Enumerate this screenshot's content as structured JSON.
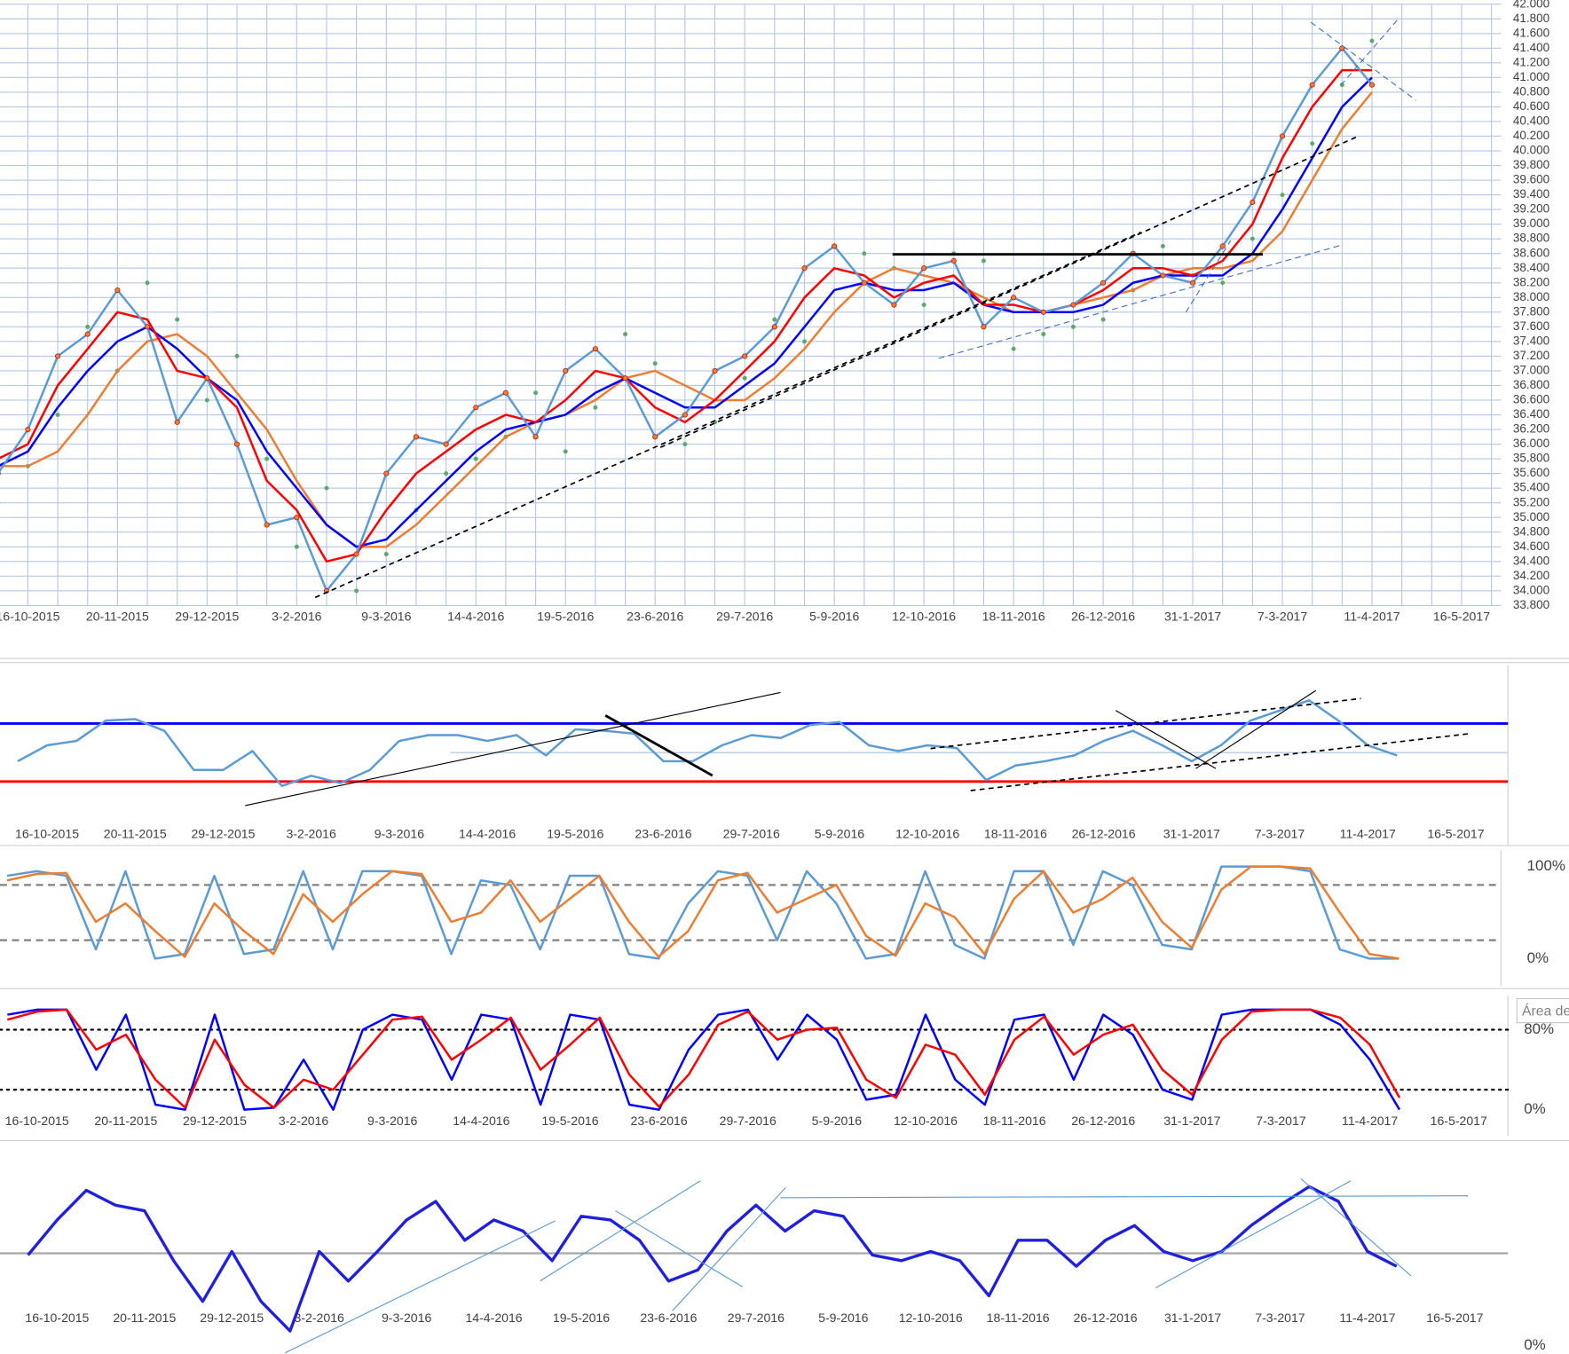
{
  "chart_data": [
    {
      "type": "line",
      "categories": [
        null,
        "16-10-2015",
        null,
        null,
        "20-11-2015",
        null,
        null,
        "29-12-2015",
        null,
        null,
        "3-2-2016",
        null,
        null,
        "9-3-2016",
        null,
        null,
        "14-4-2016",
        null,
        null,
        "19-5-2016",
        null,
        null,
        "23-6-2016",
        null,
        null,
        "29-7-2016",
        null,
        null,
        "5-9-2016",
        null,
        null,
        "12-10-2016",
        null,
        null,
        "18-11-2016",
        null,
        null,
        "26-12-2016",
        null,
        null,
        "31-1-2017",
        null,
        null,
        "7-3-2017",
        null,
        null,
        "11-4-2017",
        null,
        null,
        "16-5-2017",
        null
      ],
      "ylim": [
        33800,
        42000
      ],
      "yticks": [
        {
          "value": 33800,
          "label": "33.800"
        },
        {
          "value": 34000,
          "label": "34.000"
        },
        {
          "value": 34200,
          "label": "34.200"
        },
        {
          "value": 34400,
          "label": "34.400"
        },
        {
          "value": 34600,
          "label": "34.600"
        },
        {
          "value": 34800,
          "label": "34.800"
        },
        {
          "value": 35000,
          "label": "35.000"
        },
        {
          "value": 35200,
          "label": "35.200"
        },
        {
          "value": 35400,
          "label": "35.400"
        },
        {
          "value": 35600,
          "label": "35.600"
        },
        {
          "value": 35800,
          "label": "35.800"
        },
        {
          "value": 36000,
          "label": "36.000"
        },
        {
          "value": 36200,
          "label": "36.200"
        },
        {
          "value": 36400,
          "label": "36.400"
        },
        {
          "value": 36600,
          "label": "36.600"
        },
        {
          "value": 36800,
          "label": "36.800"
        },
        {
          "value": 37000,
          "label": "37.000"
        },
        {
          "value": 37200,
          "label": "37.200"
        },
        {
          "value": 37400,
          "label": "37.400"
        },
        {
          "value": 37600,
          "label": "37.600"
        },
        {
          "value": 37800,
          "label": "37.800"
        },
        {
          "value": 38000,
          "label": "38.000"
        },
        {
          "value": 38200,
          "label": "38.200"
        },
        {
          "value": 38400,
          "label": "38.400"
        },
        {
          "value": 38600,
          "label": "38.600"
        },
        {
          "value": 38800,
          "label": "38.800"
        },
        {
          "value": 39000,
          "label": "39.000"
        },
        {
          "value": 39200,
          "label": "39.200"
        },
        {
          "value": 39400,
          "label": "39.400"
        },
        {
          "value": 39600,
          "label": "39.600"
        },
        {
          "value": 39800,
          "label": "39.800"
        },
        {
          "value": 40000,
          "label": "40.000"
        },
        {
          "value": 40200,
          "label": "40.200"
        },
        {
          "value": 40400,
          "label": "40.400"
        },
        {
          "value": 40600,
          "label": "40.600"
        },
        {
          "value": 40800,
          "label": "40.800"
        },
        {
          "value": 41000,
          "label": "41.000"
        },
        {
          "value": 41200,
          "label": "41.200"
        },
        {
          "value": 41400,
          "label": "41.400"
        },
        {
          "value": 41600,
          "label": "41.600"
        },
        {
          "value": 41800,
          "label": "41.800"
        },
        {
          "value": 42000,
          "label": "42.000"
        }
      ],
      "grid": true,
      "series": [
        {
          "color": "#5aaa6e",
          "style": "dots",
          "values": [
            35200,
            35700,
            36400,
            37600,
            37000,
            38200,
            37700,
            36600,
            37200,
            35800,
            34600,
            35400,
            34000,
            34500,
            35100,
            35600,
            35800,
            36100,
            36700,
            35900,
            36500,
            37500,
            37100,
            36000,
            36300,
            36900,
            37700,
            37400,
            38700,
            38600,
            38400,
            37900,
            38600,
            38500,
            37300,
            37500,
            37600,
            37700,
            38100,
            38700,
            38300,
            38200,
            38800,
            39400,
            40100,
            40900,
            41500,
            null,
            null,
            null,
            null
          ]
        },
        {
          "color": "#ed7d31",
          "values": [
            35700,
            35700,
            35900,
            36400,
            37000,
            37400,
            37500,
            37200,
            36700,
            36200,
            35500,
            34900,
            34600,
            34600,
            34900,
            35300,
            35700,
            36100,
            36300,
            36400,
            36600,
            36900,
            37000,
            36800,
            36600,
            36600,
            36900,
            37300,
            37800,
            38200,
            38400,
            38300,
            38200,
            38000,
            37800,
            37800,
            37900,
            38000,
            38100,
            38300,
            38400,
            38400,
            38500,
            38900,
            39600,
            40300,
            40800,
            null,
            null,
            null,
            null
          ]
        },
        {
          "color": "#0000ff",
          "values": [
            35700,
            35900,
            36500,
            37000,
            37400,
            37600,
            37300,
            36900,
            36600,
            35900,
            35400,
            34900,
            34600,
            34700,
            35100,
            35500,
            35900,
            36200,
            36300,
            36400,
            36700,
            36900,
            36700,
            36500,
            36500,
            36800,
            37100,
            37600,
            38100,
            38200,
            38100,
            38100,
            38200,
            37900,
            37800,
            37800,
            37800,
            37900,
            38200,
            38300,
            38300,
            38300,
            38600,
            39200,
            39900,
            40600,
            41000,
            null,
            null,
            null,
            null
          ]
        },
        {
          "color": "#ff0000",
          "values": [
            35800,
            36000,
            36800,
            37300,
            37800,
            37700,
            37000,
            36900,
            36500,
            35500,
            35100,
            34400,
            34500,
            35100,
            35600,
            35900,
            36200,
            36400,
            36300,
            36600,
            37000,
            36900,
            36500,
            36300,
            36600,
            37000,
            37400,
            38000,
            38400,
            38300,
            38000,
            38200,
            38300,
            37900,
            37900,
            37800,
            37900,
            38100,
            38400,
            38400,
            38300,
            38500,
            39000,
            39900,
            40600,
            41100,
            41100,
            null,
            null,
            null,
            null
          ]
        },
        {
          "color": "#5b9bd5",
          "markers": "#ed7d31",
          "values": [
            35600,
            36200,
            37200,
            37500,
            38100,
            37600,
            36300,
            36900,
            36000,
            34900,
            35000,
            34000,
            34500,
            35600,
            36100,
            36000,
            36500,
            36700,
            36100,
            37000,
            37300,
            36900,
            36100,
            36400,
            37000,
            37200,
            37600,
            38400,
            38700,
            38200,
            37900,
            38400,
            38500,
            37600,
            38000,
            37800,
            37900,
            38200,
            38600,
            38300,
            38200,
            38700,
            39300,
            40200,
            40900,
            41400,
            40900,
            null,
            null,
            null,
            null
          ]
        }
      ]
    },
    {
      "type": "line",
      "categories": [
        null,
        "16-10-2015",
        null,
        null,
        "20-11-2015",
        null,
        null,
        "29-12-2015",
        null,
        null,
        "3-2-2016",
        null,
        null,
        "9-3-2016",
        null,
        null,
        "14-4-2016",
        null,
        null,
        "19-5-2016",
        null,
        null,
        "23-6-2016",
        null,
        null,
        "29-7-2016",
        null,
        null,
        "5-9-2016",
        null,
        null,
        "12-10-2016",
        null,
        null,
        "18-11-2016",
        null,
        null,
        "26-12-2016",
        null,
        null,
        "31-1-2017",
        null,
        null,
        "7-3-2017",
        null,
        null,
        "11-4-2017",
        null,
        null,
        "16-5-2017",
        null
      ],
      "ylim": [
        0,
        100
      ],
      "hlines": [
        {
          "value": 70,
          "color": "#0000ff",
          "dash": "solid"
        },
        {
          "value": 30,
          "color": "#ff0000",
          "dash": "solid"
        },
        {
          "value": 50,
          "color": "#9dc3e6",
          "dash": "solid"
        }
      ],
      "series": [
        {
          "color": "#5b9bd5",
          "values": [
            44,
            55,
            58,
            72,
            73,
            65,
            38,
            38,
            51,
            27,
            34,
            29,
            38,
            58,
            62,
            62,
            58,
            62,
            48,
            66,
            65,
            63,
            44,
            44,
            55,
            62,
            60,
            69,
            71,
            55,
            51,
            55,
            53,
            31,
            41,
            44,
            48,
            58,
            65,
            55,
            44,
            55,
            72,
            79,
            86,
            72,
            55,
            48,
            null,
            null,
            null
          ]
        }
      ]
    },
    {
      "type": "line",
      "ylim": [
        0,
        100
      ],
      "yticks": [
        {
          "value": 100,
          "label": "100%"
        },
        {
          "value": 0,
          "label": "0%"
        }
      ],
      "hlines": [
        {
          "value": 80,
          "color": "#808080",
          "dash": "dashed"
        },
        {
          "value": 20,
          "color": "#808080",
          "dash": "dashed"
        }
      ],
      "series": [
        {
          "color": "#5b9bd5",
          "values": [
            90,
            95,
            90,
            10,
            95,
            0,
            5,
            90,
            5,
            10,
            95,
            10,
            95,
            95,
            90,
            5,
            85,
            80,
            10,
            90,
            90,
            5,
            0,
            60,
            95,
            90,
            20,
            95,
            60,
            0,
            5,
            95,
            15,
            0,
            95,
            95,
            15,
            95,
            80,
            15,
            10,
            100,
            100,
            100,
            95,
            10,
            0,
            0,
            null,
            null,
            null
          ]
        },
        {
          "color": "#ed7d31",
          "values": [
            85,
            92,
            93,
            40,
            60,
            30,
            2,
            60,
            30,
            5,
            70,
            40,
            70,
            95,
            92,
            40,
            50,
            85,
            40,
            65,
            90,
            40,
            2,
            30,
            85,
            93,
            50,
            65,
            80,
            25,
            3,
            60,
            45,
            5,
            65,
            95,
            50,
            65,
            88,
            40,
            12,
            75,
            100,
            100,
            98,
            50,
            5,
            0,
            null,
            null,
            null
          ]
        }
      ]
    },
    {
      "type": "line",
      "categories": [
        null,
        "16-10-2015",
        null,
        null,
        "20-11-2015",
        null,
        null,
        "29-12-2015",
        null,
        null,
        "3-2-2016",
        null,
        null,
        "9-3-2016",
        null,
        null,
        "14-4-2016",
        null,
        null,
        "19-5-2016",
        null,
        null,
        "23-6-2016",
        null,
        null,
        "29-7-2016",
        null,
        null,
        "5-9-2016",
        null,
        null,
        "12-10-2016",
        null,
        null,
        "18-11-2016",
        null,
        null,
        "26-12-2016",
        null,
        null,
        "31-1-2017",
        null,
        null,
        "7-3-2017",
        null,
        null,
        "11-4-2017",
        null,
        null,
        "16-5-2017",
        null
      ],
      "ylim": [
        0,
        100
      ],
      "yticks": [
        {
          "value": 80,
          "label": "80%"
        },
        {
          "value": 0,
          "label": "0%"
        }
      ],
      "hlines": [
        {
          "value": 80,
          "color": "#000000",
          "dash": "dotted"
        },
        {
          "value": 20,
          "color": "#000000",
          "dash": "dotted"
        }
      ],
      "annotation": "Área de",
      "series": [
        {
          "color": "#0000ff",
          "values": [
            95,
            100,
            100,
            40,
            95,
            5,
            0,
            95,
            0,
            2,
            50,
            0,
            80,
            95,
            90,
            30,
            95,
            90,
            5,
            95,
            90,
            5,
            0,
            60,
            95,
            100,
            50,
            95,
            70,
            10,
            15,
            95,
            30,
            5,
            90,
            95,
            30,
            95,
            75,
            20,
            10,
            95,
            100,
            100,
            100,
            85,
            50,
            0,
            null,
            null,
            null
          ]
        },
        {
          "color": "#ff0000",
          "values": [
            90,
            98,
            100,
            60,
            75,
            30,
            2,
            70,
            25,
            2,
            30,
            20,
            55,
            90,
            93,
            50,
            70,
            92,
            40,
            65,
            92,
            35,
            3,
            35,
            85,
            98,
            70,
            80,
            82,
            30,
            12,
            65,
            55,
            15,
            70,
            93,
            55,
            75,
            85,
            40,
            15,
            70,
            98,
            100,
            100,
            92,
            65,
            12,
            null,
            null,
            null
          ]
        }
      ]
    },
    {
      "type": "line",
      "categories": [
        null,
        "16-10-2015",
        null,
        null,
        "20-11-2015",
        null,
        null,
        "29-12-2015",
        null,
        null,
        "3-2-2016",
        null,
        null,
        "9-3-2016",
        null,
        null,
        "14-4-2016",
        null,
        null,
        "19-5-2016",
        null,
        null,
        "23-6-2016",
        null,
        null,
        "29-7-2016",
        null,
        null,
        "5-9-2016",
        null,
        null,
        "12-10-2016",
        null,
        null,
        "18-11-2016",
        null,
        null,
        "26-12-2016",
        null,
        null,
        "31-1-2017",
        null,
        null,
        "7-3-2017",
        null,
        null,
        "11-4-2017",
        null,
        null,
        "16-5-2017",
        null
      ],
      "ylim": [
        0,
        100
      ],
      "yticks": [
        {
          "value": 0,
          "label": "0%"
        }
      ],
      "hlines": [
        {
          "value": 50,
          "color": "#a6a6a6",
          "dash": "solid"
        }
      ],
      "series": [
        {
          "color": "#1f1fe0",
          "values": [
            49,
            68,
            84,
            76,
            73,
            46,
            24,
            51,
            24,
            8,
            51,
            35,
            51,
            68,
            78,
            57,
            68,
            62,
            46,
            70,
            68,
            57,
            35,
            41,
            62,
            76,
            62,
            73,
            70,
            49,
            46,
            51,
            46,
            27,
            57,
            57,
            43,
            57,
            65,
            51,
            46,
            51,
            65,
            76,
            86,
            78,
            51,
            43,
            null,
            null,
            null
          ]
        }
      ]
    }
  ]
}
